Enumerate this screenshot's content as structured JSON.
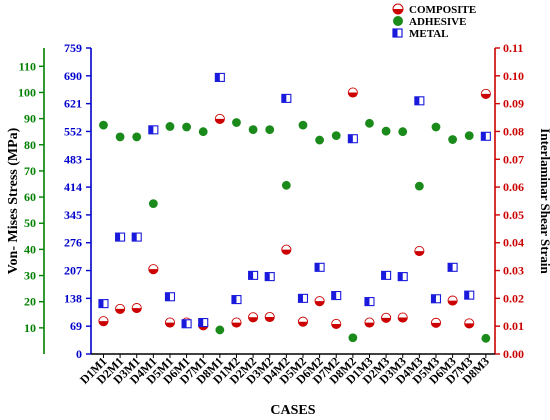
{
  "chart_data": {
    "type": "scatter",
    "xlabel": "CASES",
    "categories": [
      "D1M1",
      "D2M1",
      "D3M1",
      "D4M1",
      "D5M1",
      "D6M1",
      "D7M1",
      "D8M1",
      "D1M2",
      "D2M2",
      "D3M2",
      "D4M2",
      "D5M2",
      "D6M2",
      "D7M2",
      "D8M2",
      "D1M3",
      "D2M3",
      "D3M3",
      "D4M3",
      "D5M3",
      "D6M3",
      "D7M3",
      "D8M3"
    ],
    "axes": {
      "outer_left": {
        "label": "Von- Mises Stress (MPa)",
        "range": [
          0,
          117
        ],
        "ticks": [
          10,
          20,
          30,
          40,
          50,
          60,
          70,
          80,
          90,
          100,
          110
        ],
        "color": "#008000"
      },
      "inner_left": {
        "range": [
          0,
          759
        ],
        "ticks": [
          0,
          69,
          138,
          207,
          276,
          345,
          414,
          483,
          552,
          621,
          690,
          759
        ],
        "color": "#0000cc"
      },
      "right": {
        "label": "Interlaminar Shear Strain",
        "range": [
          0,
          0.11
        ],
        "ticks": [
          "0.00",
          "0.01",
          "0.02",
          "0.03",
          "0.04",
          "0.05",
          "0.06",
          "0.07",
          "0.08",
          "0.09",
          "0.10",
          "0.11"
        ],
        "color": "#cc0000"
      }
    },
    "series": [
      {
        "name": "COMPOSITE",
        "axis": "right",
        "color": "#cc0000",
        "values": [
          0.0118,
          0.0162,
          0.0165,
          0.0305,
          0.0113,
          0.0113,
          0.0103,
          0.0845,
          0.0113,
          0.0132,
          0.0133,
          0.0375,
          0.0116,
          0.019,
          0.0108,
          0.094,
          0.0113,
          0.013,
          0.0131,
          0.037,
          0.0112,
          0.0192,
          0.011,
          0.0935
        ]
      },
      {
        "name": "ADHESIVE",
        "axis": "outer_left",
        "color": "#1a8a1a",
        "values": [
          87.5,
          83.0,
          83.0,
          57.5,
          87.0,
          86.8,
          85.0,
          9.2,
          88.5,
          85.8,
          85.8,
          64.5,
          87.5,
          81.8,
          83.5,
          6.2,
          88.2,
          85.2,
          85.0,
          64.2,
          86.8,
          82.0,
          83.5,
          6.0
        ]
      },
      {
        "name": "METAL",
        "axis": "inner_left",
        "color": "#1a1adc",
        "values": [
          125,
          290,
          290,
          556,
          142,
          75,
          78,
          686,
          135,
          195,
          192,
          634,
          138,
          215,
          145,
          534,
          130,
          195,
          192,
          628,
          137,
          215,
          146,
          540
        ]
      }
    ],
    "legend_position": "top-right",
    "grid": false
  }
}
